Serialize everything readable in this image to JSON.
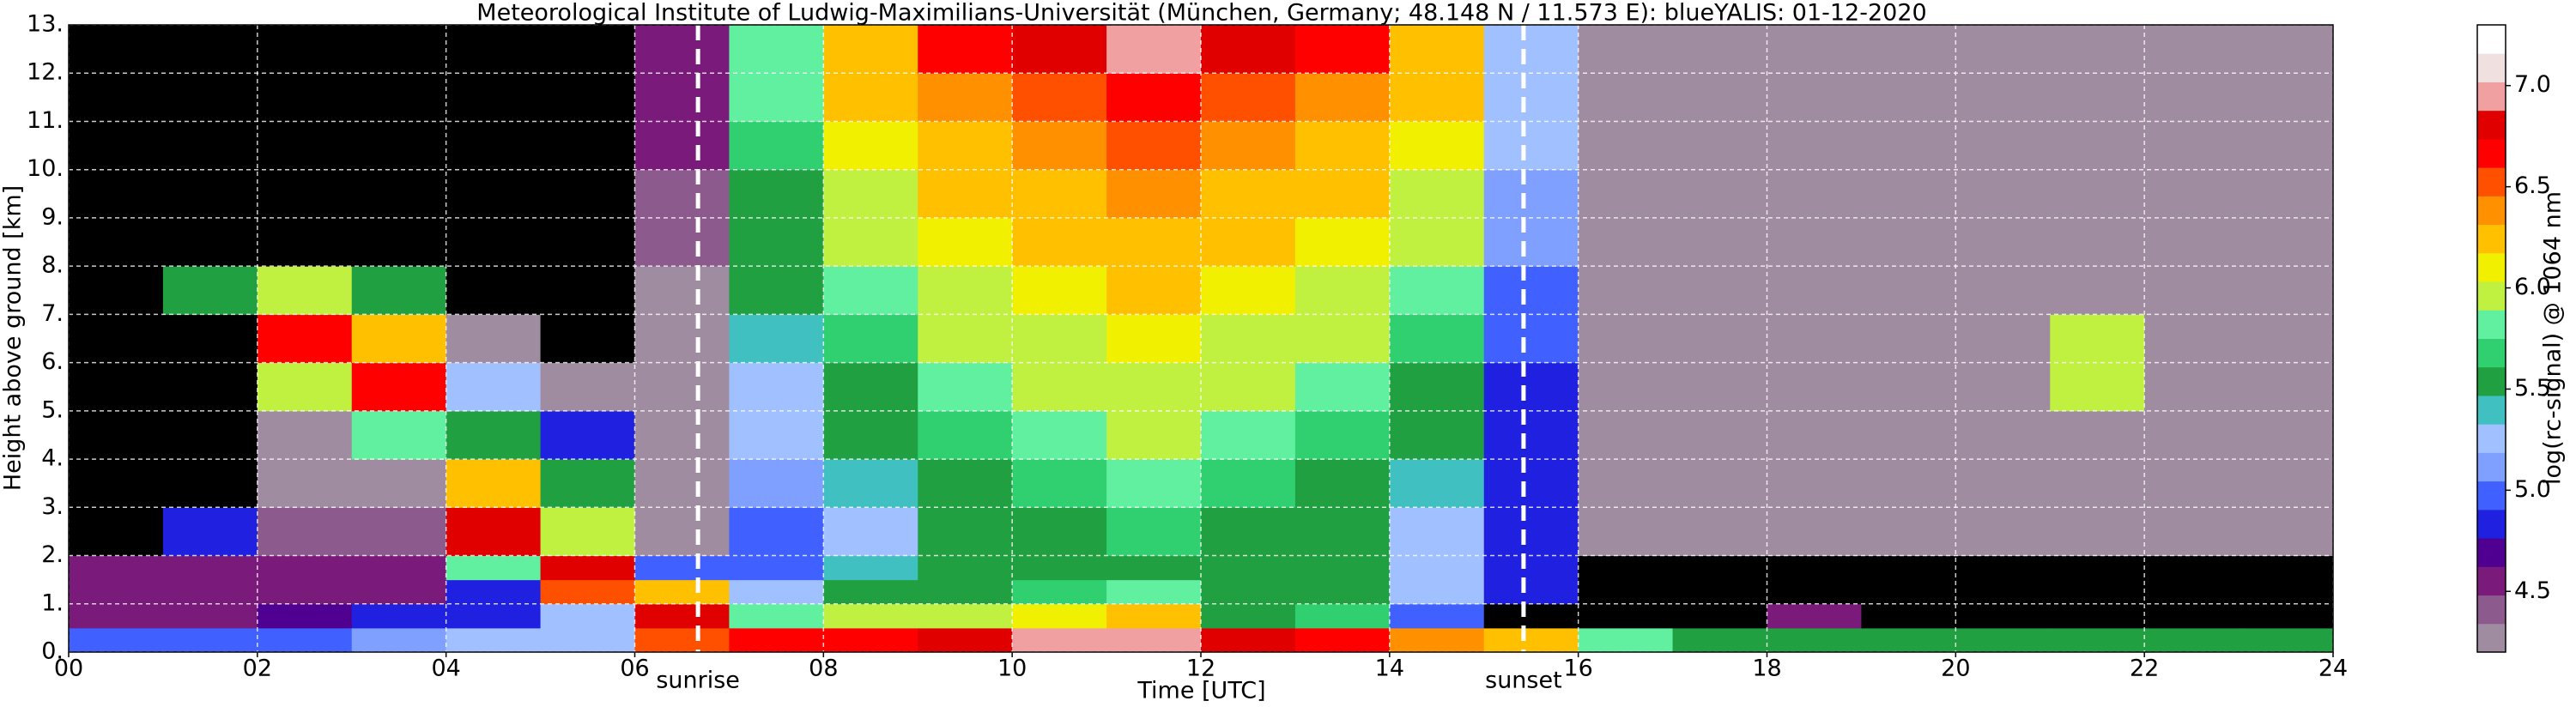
{
  "chart_data": {
    "type": "heatmap",
    "title": "Meteorological Institute of Ludwig-Maximilians-Universität (München, Germany; 48.148 N / 11.573 E):    blueYALIS: 01-12-2020",
    "x_label": "Time [UTC]",
    "y_label": "Height above ground [km]",
    "colorbar_label": "log(rc-signal) @ 1064 nm",
    "x_edges": [
      0,
      1,
      2,
      3,
      4,
      5,
      6,
      7,
      8,
      9,
      10,
      11,
      12,
      13,
      14,
      15,
      16,
      17,
      18,
      19,
      20,
      21,
      22,
      23,
      24
    ],
    "y_edges": [
      0,
      0.5,
      1,
      1.5,
      2,
      3,
      4,
      5,
      6,
      7,
      8,
      9,
      10,
      11,
      12,
      13
    ],
    "z": [
      [
        5.0,
        4.6,
        4.5,
        4.6,
        4.1,
        4.1,
        4.1,
        4.1,
        4.1,
        4.1,
        4.1,
        4.1,
        4.1,
        4.1,
        4.1
      ],
      [
        5.0,
        4.6,
        4.5,
        4.6,
        4.8,
        4.1,
        4.1,
        4.1,
        4.1,
        5.5,
        4.1,
        4.1,
        4.1,
        4.1,
        4.1
      ],
      [
        5.0,
        4.7,
        4.6,
        4.6,
        4.4,
        4.3,
        4.3,
        6.0,
        6.6,
        6.0,
        4.1,
        4.1,
        4.1,
        4.1,
        4.1
      ],
      [
        5.1,
        4.8,
        4.6,
        4.6,
        4.4,
        4.3,
        5.8,
        6.6,
        6.3,
        5.6,
        4.1,
        4.1,
        4.1,
        4.1,
        4.1
      ],
      [
        5.2,
        4.9,
        4.8,
        5.8,
        6.8,
        6.3,
        5.6,
        5.3,
        4.3,
        4.1,
        4.1,
        4.1,
        4.1,
        4.1,
        4.1
      ],
      [
        5.2,
        5.3,
        6.5,
        6.8,
        6.0,
        5.5,
        4.8,
        4.3,
        4.1,
        4.1,
        4.1,
        4.1,
        4.1,
        4.1,
        4.1
      ],
      [
        6.5,
        6.8,
        6.2,
        5.0,
        4.3,
        4.2,
        4.2,
        4.2,
        4.3,
        4.3,
        4.4,
        4.4,
        4.5,
        4.5,
        4.6
      ],
      [
        6.6,
        5.8,
        5.2,
        5.0,
        5.0,
        5.1,
        5.2,
        5.3,
        5.4,
        5.5,
        5.6,
        5.6,
        5.7,
        5.8,
        5.8
      ],
      [
        6.7,
        6.0,
        5.6,
        5.4,
        5.3,
        5.4,
        5.5,
        5.6,
        5.7,
        5.8,
        5.9,
        6.0,
        6.1,
        6.2,
        6.3
      ],
      [
        6.8,
        6.0,
        5.6,
        5.5,
        5.5,
        5.6,
        5.7,
        5.8,
        5.9,
        6.0,
        6.1,
        6.2,
        6.3,
        6.4,
        6.6
      ],
      [
        6.9,
        6.1,
        5.7,
        5.6,
        5.6,
        5.7,
        5.8,
        5.9,
        6.0,
        6.1,
        6.2,
        6.3,
        6.4,
        6.5,
        6.8
      ],
      [
        6.9,
        6.2,
        5.8,
        5.6,
        5.7,
        5.8,
        5.9,
        6.0,
        6.1,
        6.2,
        6.3,
        6.4,
        6.5,
        6.6,
        6.9
      ],
      [
        6.8,
        5.6,
        5.6,
        5.6,
        5.6,
        5.7,
        5.8,
        5.9,
        6.0,
        6.1,
        6.2,
        6.3,
        6.4,
        6.5,
        6.8
      ],
      [
        6.6,
        5.7,
        5.5,
        5.5,
        5.5,
        5.6,
        5.7,
        5.8,
        5.9,
        6.0,
        6.1,
        6.2,
        6.3,
        6.4,
        6.6
      ],
      [
        6.4,
        5.0,
        5.3,
        5.3,
        5.3,
        5.4,
        5.5,
        5.6,
        5.7,
        5.8,
        5.9,
        6.0,
        6.1,
        6.2,
        6.3
      ],
      [
        6.3,
        4.1,
        4.8,
        4.8,
        4.8,
        4.8,
        4.9,
        4.9,
        5.0,
        5.0,
        5.1,
        5.1,
        5.2,
        5.2,
        5.3
      ],
      [
        5.8,
        4.1,
        4.1,
        4.1,
        4.3,
        4.3,
        4.3,
        4.3,
        4.3,
        4.3,
        4.3,
        4.3,
        4.3,
        4.3,
        4.3
      ],
      [
        5.6,
        4.1,
        4.1,
        4.1,
        4.3,
        4.3,
        4.3,
        4.3,
        4.3,
        4.3,
        4.3,
        4.3,
        4.3,
        4.3,
        4.3
      ],
      [
        5.5,
        4.6,
        4.1,
        4.1,
        4.3,
        4.3,
        4.3,
        4.3,
        4.3,
        4.3,
        4.3,
        4.3,
        4.3,
        4.3,
        4.3
      ],
      [
        5.5,
        4.1,
        4.1,
        4.1,
        4.3,
        4.3,
        4.3,
        4.3,
        4.3,
        4.3,
        4.3,
        4.3,
        4.3,
        4.3,
        4.3
      ],
      [
        5.5,
        4.1,
        4.1,
        4.1,
        4.3,
        4.3,
        4.3,
        4.3,
        4.3,
        4.3,
        4.3,
        4.3,
        4.3,
        4.3,
        4.3
      ],
      [
        5.5,
        4.1,
        4.1,
        4.1,
        4.3,
        4.3,
        4.3,
        6.0,
        6.0,
        4.3,
        4.3,
        4.3,
        4.3,
        4.3,
        4.3
      ],
      [
        5.6,
        4.1,
        4.1,
        4.1,
        4.3,
        4.3,
        4.3,
        4.3,
        4.3,
        4.3,
        4.3,
        4.3,
        4.3,
        4.3,
        4.3
      ],
      [
        5.5,
        4.1,
        4.1,
        4.1,
        4.3,
        4.3,
        4.3,
        4.3,
        4.3,
        4.3,
        4.3,
        4.3,
        4.3,
        4.3,
        4.3
      ]
    ],
    "colorscale": [
      "#a08ca0",
      "#8c5a8c",
      "#7a1a7a",
      "#500090",
      "#2020e0",
      "#4060ff",
      "#80a0ff",
      "#a0c0ff",
      "#40c0c0",
      "#20a040",
      "#30d070",
      "#60f0a0",
      "#c0f040",
      "#f0f000",
      "#ffc000",
      "#ff9000",
      "#ff5000",
      "#ff0000",
      "#e00000",
      "#f0a0a0",
      "#f0e0e0",
      "#ffffff"
    ],
    "under_color": "#000000",
    "zlim": [
      4.2,
      7.3
    ],
    "zticks": [
      4.5,
      {
        "value": 5,
        "label": "5.0"
      },
      5.5,
      {
        "value": 6,
        "label": "6.0"
      },
      6.5,
      {
        "value": 7,
        "label": "7.0"
      }
    ],
    "xlim": [
      0,
      24
    ],
    "xticks": [
      {
        "value": 0,
        "label": "00"
      },
      {
        "value": 2,
        "label": "02"
      },
      {
        "value": 4,
        "label": "04"
      },
      {
        "value": 6,
        "label": "06"
      },
      {
        "value": 8,
        "label": "08"
      },
      {
        "value": 10,
        "label": "10"
      },
      {
        "value": 12,
        "label": "12"
      },
      {
        "value": 14,
        "label": "14"
      },
      {
        "value": 16,
        "label": "16"
      },
      {
        "value": 18,
        "label": "18"
      },
      {
        "value": 20,
        "label": "20"
      },
      {
        "value": 22,
        "label": "22"
      },
      {
        "value": 24,
        "label": "24"
      }
    ],
    "ylim": [
      0,
      13
    ],
    "yticks": [
      {
        "value": 0,
        "label": "0."
      },
      {
        "value": 1,
        "label": "1."
      },
      {
        "value": 2,
        "label": "2."
      },
      {
        "value": 3,
        "label": "3."
      },
      {
        "value": 4,
        "label": "4."
      },
      {
        "value": 5,
        "label": "5."
      },
      {
        "value": 6,
        "label": "6."
      },
      {
        "value": 7,
        "label": "7."
      },
      {
        "value": 8,
        "label": "8."
      },
      {
        "value": 9,
        "label": "9."
      },
      {
        "value": 10,
        "label": "10."
      },
      {
        "value": 11,
        "label": "11."
      },
      {
        "value": 12,
        "label": "12."
      },
      {
        "value": 13,
        "label": "13."
      }
    ],
    "grid": true,
    "annotations": [
      {
        "x": 6.67,
        "text": "sunrise"
      },
      {
        "x": 15.42,
        "text": "sunset"
      }
    ]
  }
}
